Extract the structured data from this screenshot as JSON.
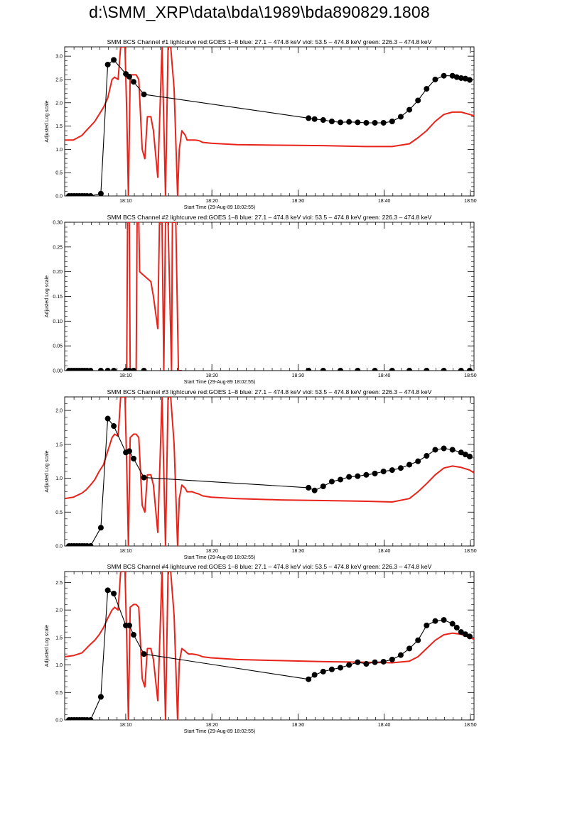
{
  "page": {
    "title": "d:\\SMM_XRP\\data\\bda\\1989\\bda890829.1808"
  },
  "colors": {
    "background": "#ffffff",
    "axes": "#000000",
    "goes_curve": "#e8231a",
    "bcs_curve": "#000000"
  },
  "chart_data": [
    {
      "type": "line",
      "title": "SMM BCS Channel #1 lightcurve  red:GOES 1–8  blue: 27.1 – 474.8 keV  viol: 53.5 – 474.8 keV  green: 226.3 – 474.8 keV",
      "xlabel": "Start Time (29-Aug-89 18:02:55)",
      "ylabel": "Adjusted Log scale",
      "x_tick_labels": [
        "18:10",
        "18:20",
        "18:30",
        "18:40",
        "18:50"
      ],
      "x_tick_values": [
        7.083,
        17.083,
        27.083,
        37.083,
        47.083
      ],
      "xlim": [
        0,
        47.5
      ],
      "ylim": [
        0,
        3.2
      ],
      "y_ticks": [
        "0.0",
        "0.5",
        "1.0",
        "1.5",
        "2.0",
        "2.5",
        "3.0"
      ],
      "grid": false,
      "series": [
        {
          "style": "red line",
          "x": [
            0,
            1,
            2,
            2.5,
            3,
            3.5,
            4,
            4.5,
            5,
            5.5,
            5.8,
            6.2,
            6.5,
            7,
            7.2,
            7.4,
            7.6,
            8,
            8.3,
            8.6,
            9.0,
            9.3,
            9.6,
            10.0,
            10.3,
            10.8,
            11.3,
            11.7,
            12.0,
            12.3,
            12.7,
            13.1,
            13.3,
            13.6,
            14.0,
            14.2,
            14.4,
            14.8,
            15.2,
            15.5,
            15.7,
            16,
            17,
            20,
            25,
            30,
            35,
            38,
            40,
            41,
            42,
            43,
            44,
            45,
            46,
            47,
            47.5
          ],
          "y": [
            1.2,
            1.2,
            1.3,
            1.4,
            1.5,
            1.6,
            1.75,
            1.9,
            2.1,
            2.5,
            2.55,
            2.5,
            3.2,
            3.2,
            1.8,
            0,
            2.6,
            2.6,
            2.6,
            2.5,
            1.0,
            0.8,
            1.7,
            1.7,
            1.4,
            0.4,
            3.2,
            0,
            3.2,
            3.2,
            2.3,
            0,
            1.0,
            1.4,
            1.3,
            1.2,
            1.2,
            1.2,
            1.2,
            1.19,
            1.18,
            1.15,
            1.13,
            1.1,
            1.09,
            1.08,
            1.06,
            1.06,
            1.12,
            1.25,
            1.4,
            1.6,
            1.75,
            1.8,
            1.8,
            1.75,
            1.72
          ]
        },
        {
          "style": "black line with filled circles",
          "x": [
            0.5,
            0.8,
            1.1,
            1.4,
            1.7,
            2.0,
            2.3,
            2.6,
            3.0,
            4.2,
            5.0,
            5.7,
            7.1,
            7.5,
            8.0,
            9.2,
            28.3,
            29,
            30,
            31,
            32,
            33,
            34,
            35,
            36,
            37,
            38,
            39,
            40,
            41,
            42,
            43,
            44,
            45,
            45.5,
            46,
            46.5,
            47
          ],
          "y": [
            0,
            0,
            0,
            0,
            0,
            0,
            0,
            0,
            0,
            0.05,
            2.82,
            2.92,
            2.62,
            2.56,
            2.45,
            2.18,
            1.67,
            1.65,
            1.63,
            1.6,
            1.58,
            1.59,
            1.58,
            1.57,
            1.57,
            1.57,
            1.6,
            1.7,
            1.85,
            2.05,
            2.3,
            2.5,
            2.58,
            2.58,
            2.55,
            2.53,
            2.52,
            2.49
          ]
        }
      ]
    },
    {
      "type": "line",
      "title": "SMM BCS Channel #2 lightcurve  red:GOES 1–8  blue: 27.1 – 474.8 keV  viol: 53.5 – 474.8 keV  green: 226.3 – 474.8 keV",
      "xlabel": "Start Time (29-Aug-89 18:02:55)",
      "ylabel": "Adjusted Log scale",
      "x_tick_labels": [
        "18:10",
        "18:20",
        "18:30",
        "18:40",
        "18:50"
      ],
      "x_tick_values": [
        7.083,
        17.083,
        27.083,
        37.083,
        47.083
      ],
      "xlim": [
        0,
        47.5
      ],
      "ylim": [
        0,
        0.3
      ],
      "y_ticks": [
        "0.00",
        "0.05",
        "0.10",
        "0.15",
        "0.20",
        "0.25",
        "0.30"
      ],
      "grid": false,
      "series": [
        {
          "style": "red line",
          "x": [
            7.2,
            7.3,
            7.5,
            7.6,
            8.3,
            8.4,
            8.6,
            8.7,
            10.0,
            10.3,
            10.8,
            11.0,
            11.3,
            11.5,
            11.7,
            12.0,
            12.4,
            12.5,
            12.9,
            13.2,
            13.6
          ],
          "y": [
            0,
            0.3,
            0.3,
            0,
            0,
            0.3,
            0.3,
            0.2,
            0.18,
            0.15,
            0.085,
            0.3,
            0.3,
            0,
            0.3,
            0.3,
            0,
            0.3,
            0.3,
            0,
            0
          ]
        },
        {
          "style": "black line with filled circles",
          "x": [
            0.5,
            0.8,
            1.1,
            1.4,
            1.7,
            2.0,
            2.3,
            2.6,
            3.0,
            4.2,
            5.0,
            5.7,
            7.1,
            7.5,
            8.0,
            9.2,
            28.3,
            30,
            32,
            34,
            36,
            38,
            40,
            42,
            44,
            46,
            47
          ],
          "y": [
            0,
            0,
            0,
            0,
            0,
            0,
            0,
            0,
            0,
            0,
            0,
            0,
            0,
            0,
            0,
            0,
            0,
            0,
            0,
            0,
            0,
            0,
            0,
            0,
            0,
            0,
            0
          ]
        }
      ]
    },
    {
      "type": "line",
      "title": "SMM BCS Channel #3 lightcurve  red:GOES 1–8  blue: 27.1 – 474.8 keV  viol: 53.5 – 474.8 keV  green: 226.3 – 474.8 keV",
      "xlabel": "Start Time (29-Aug-89 18:02:55)",
      "ylabel": "Adjusted Log scale",
      "x_tick_labels": [
        "18:10",
        "18:20",
        "18:30",
        "18:40",
        "18:50"
      ],
      "x_tick_values": [
        7.083,
        17.083,
        27.083,
        37.083,
        47.083
      ],
      "xlim": [
        0,
        47.5
      ],
      "ylim": [
        0,
        2.2
      ],
      "y_ticks": [
        "0.0",
        "0.5",
        "1.0",
        "1.5",
        "2.0"
      ],
      "grid": false,
      "series": [
        {
          "style": "red line",
          "x": [
            0,
            1,
            2,
            2.5,
            3,
            3.5,
            4,
            4.5,
            5,
            5.5,
            5.8,
            6.2,
            6.5,
            7,
            7.2,
            7.4,
            7.6,
            8,
            8.3,
            8.6,
            9.0,
            9.3,
            9.6,
            10.0,
            10.3,
            10.8,
            11.3,
            11.7,
            12.0,
            12.3,
            12.7,
            13.1,
            13.3,
            13.6,
            14.0,
            14.2,
            14.4,
            14.8,
            15.2,
            15.5,
            15.7,
            16,
            17,
            20,
            25,
            30,
            35,
            38,
            40,
            41,
            42,
            43,
            44,
            45,
            46,
            47,
            47.5
          ],
          "y": [
            0.7,
            0.72,
            0.78,
            0.83,
            0.9,
            0.98,
            1.1,
            1.2,
            1.4,
            1.6,
            1.65,
            1.62,
            2.2,
            2.2,
            1.2,
            0,
            1.6,
            1.65,
            1.65,
            1.6,
            0.6,
            0.5,
            1.05,
            1.05,
            0.9,
            0.2,
            2.2,
            0,
            2.2,
            2.2,
            1.5,
            0,
            0.7,
            0.9,
            0.85,
            0.8,
            0.8,
            0.8,
            0.78,
            0.77,
            0.76,
            0.74,
            0.72,
            0.7,
            0.68,
            0.67,
            0.66,
            0.65,
            0.7,
            0.8,
            0.92,
            1.05,
            1.15,
            1.18,
            1.16,
            1.12,
            1.08
          ]
        },
        {
          "style": "black line with filled circles",
          "x": [
            0.5,
            0.8,
            1.1,
            1.4,
            1.7,
            2.0,
            2.3,
            2.6,
            3.0,
            4.2,
            5.0,
            5.7,
            7.1,
            7.5,
            8.0,
            9.2,
            28.3,
            29,
            30,
            31,
            32,
            33,
            34,
            35,
            36,
            37,
            38,
            39,
            40,
            41,
            42,
            43,
            44,
            45,
            46,
            46.5,
            47
          ],
          "y": [
            0,
            0,
            0,
            0,
            0,
            0,
            0,
            0,
            0,
            0.27,
            1.88,
            1.77,
            1.38,
            1.4,
            1.29,
            1.01,
            0.86,
            0.82,
            0.88,
            0.95,
            0.98,
            1.02,
            1.03,
            1.05,
            1.07,
            1.1,
            1.12,
            1.15,
            1.2,
            1.25,
            1.33,
            1.42,
            1.44,
            1.42,
            1.38,
            1.35,
            1.32
          ]
        }
      ]
    },
    {
      "type": "line",
      "title": "SMM BCS Channel #4 lightcurve  red:GOES 1–8  blue: 27.1 – 474.8 keV  viol: 53.5 – 474.8 keV  green: 226.3 – 474.8 keV",
      "xlabel": "Start Time (29-Aug-89 18:02:55)",
      "ylabel": "Adjusted Log scale",
      "x_tick_labels": [
        "18:10",
        "18:20",
        "18:30",
        "18:40",
        "18:50"
      ],
      "x_tick_values": [
        7.083,
        17.083,
        27.083,
        37.083,
        47.083
      ],
      "xlim": [
        0,
        47.5
      ],
      "ylim": [
        0,
        2.7
      ],
      "y_ticks": [
        "0.0",
        "0.5",
        "1.0",
        "1.5",
        "2.0",
        "2.5"
      ],
      "grid": false,
      "series": [
        {
          "style": "red line",
          "x": [
            0,
            1,
            2,
            2.5,
            3,
            3.5,
            4,
            4.5,
            5,
            5.5,
            5.8,
            6.2,
            6.5,
            7,
            7.2,
            7.4,
            7.6,
            8,
            8.3,
            8.6,
            9.0,
            9.3,
            9.6,
            10.0,
            10.3,
            10.8,
            11.3,
            11.7,
            12.0,
            12.3,
            12.7,
            13.1,
            13.3,
            13.6,
            14.0,
            14.2,
            14.4,
            14.8,
            15.2,
            15.5,
            15.7,
            16,
            17,
            20,
            25,
            30,
            35,
            38,
            40,
            41,
            42,
            43,
            44,
            45,
            46,
            47,
            47.5
          ],
          "y": [
            1.15,
            1.17,
            1.22,
            1.3,
            1.38,
            1.45,
            1.55,
            1.68,
            1.85,
            2.0,
            2.05,
            2.0,
            2.7,
            2.7,
            1.5,
            0,
            2.05,
            2.1,
            2.1,
            2.05,
            0.75,
            0.6,
            1.3,
            1.3,
            1.1,
            0.35,
            2.7,
            0,
            2.7,
            2.7,
            1.9,
            0,
            1.05,
            1.3,
            1.25,
            1.22,
            1.2,
            1.2,
            1.19,
            1.18,
            1.17,
            1.15,
            1.13,
            1.1,
            1.08,
            1.06,
            1.05,
            1.04,
            1.07,
            1.15,
            1.3,
            1.45,
            1.55,
            1.58,
            1.56,
            1.5,
            1.47
          ]
        },
        {
          "style": "black line with filled circles",
          "x": [
            0.5,
            0.8,
            1.1,
            1.4,
            1.7,
            2.0,
            2.3,
            2.6,
            3.0,
            4.2,
            5.0,
            5.7,
            7.1,
            7.5,
            8.0,
            9.2,
            28.3,
            29,
            30,
            31,
            32,
            33,
            34,
            35,
            36,
            37,
            38,
            39,
            40,
            41,
            42,
            43,
            44,
            45,
            45.5,
            46,
            46.5,
            47
          ],
          "y": [
            0,
            0,
            0,
            0,
            0,
            0,
            0,
            0,
            0,
            0.42,
            2.36,
            2.3,
            1.72,
            1.72,
            1.55,
            1.2,
            0.74,
            0.82,
            0.88,
            0.92,
            0.95,
            1.0,
            1.05,
            1.02,
            1.05,
            1.06,
            1.1,
            1.18,
            1.3,
            1.45,
            1.72,
            1.8,
            1.82,
            1.75,
            1.68,
            1.6,
            1.56,
            1.52
          ]
        }
      ]
    }
  ]
}
